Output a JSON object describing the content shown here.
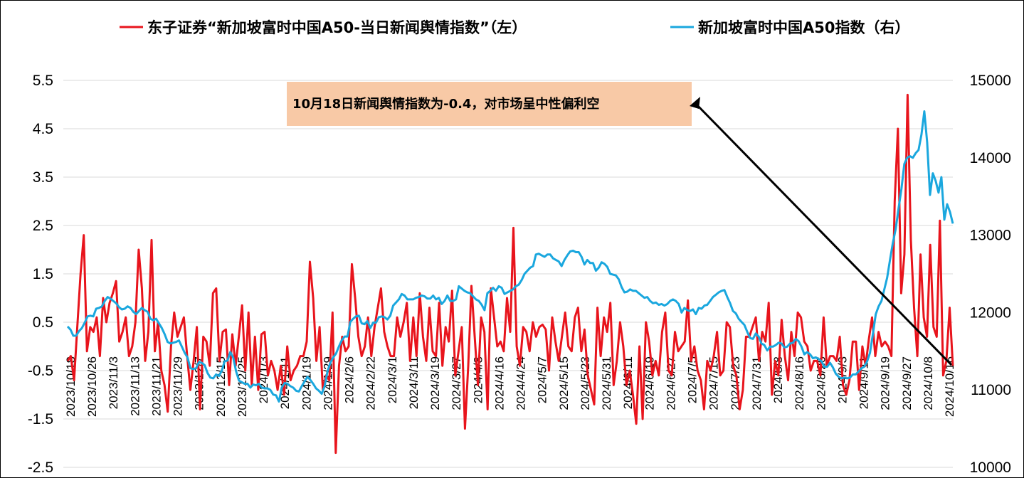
{
  "colors": {
    "sentiment": "#e8141c",
    "a50": "#1aa7de",
    "annotation_box": "#f8c9a6",
    "grid": "#d9d9d9"
  },
  "legend": {
    "sentiment_label": "东子证券“新加坡富时中国A50-当日新闻舆情指数”（左）",
    "a50_label": "新加坡富时中国A50指数（右）"
  },
  "annotation": {
    "text": "10月18日新闻舆情指数为-0.4，对市场呈中性偏利空"
  },
  "chart_data": {
    "type": "line",
    "legend_position": "top",
    "grid": "horizontal",
    "y_left": {
      "range": [
        -2.5,
        5.5
      ],
      "ticks": [
        "-2.5",
        "-1.5",
        "-0.5",
        "0.5",
        "1.5",
        "2.5",
        "3.5",
        "4.5",
        "5.5"
      ]
    },
    "y_right": {
      "range": [
        10000,
        15000
      ],
      "ticks": [
        "10000",
        "11000",
        "12000",
        "13000",
        "14000",
        "15000"
      ]
    },
    "x_tick_labels": [
      "2023/10/18",
      "2023/10/26",
      "2023/11/3",
      "2023/11/13",
      "2023/11/21",
      "2023/11/29",
      "2023/12/7",
      "2023/12/15",
      "2023/12/25",
      "2024/1/3",
      "2024/1/11",
      "2024/1/19",
      "2024/1/29",
      "2024/2/6",
      "2024/2/22",
      "2024/3/1",
      "2024/3/11",
      "2024/3/19",
      "2024/3/27",
      "2024/4/8",
      "2024/4/16",
      "2024/4/24",
      "2024/5/7",
      "2024/5/15",
      "2024/5/23",
      "2024/5/31",
      "2024/6/11",
      "2024/6/19",
      "2024/6/27",
      "2024/7/5",
      "2024/7/15",
      "2024/7/23",
      "2024/7/31",
      "2024/8/8",
      "2024/8/16",
      "2024/8/26",
      "2024/9/3",
      "2024/9/11",
      "2024/9/19",
      "2024/9/27",
      "2024/10/8",
      "2024/10/16"
    ],
    "series": [
      {
        "name": "东子证券“新加坡富时中国A50-当日新闻舆情指数”（左）",
        "axis": "left",
        "values": [
          -0.3,
          -0.2,
          -0.7,
          0.4,
          1.5,
          2.3,
          -0.1,
          0.4,
          0.3,
          0.6,
          -0.2,
          1.0,
          0.5,
          0.9,
          1.1,
          1.35,
          0.1,
          0.3,
          0.6,
          -0.2,
          0.0,
          0.5,
          2.0,
          1.2,
          -0.3,
          0.3,
          2.2,
          -0.1,
          0.5,
          -0.5,
          -0.8,
          -1.35,
          0.0,
          0.7,
          0.2,
          0.4,
          0.6,
          -0.2,
          -0.9,
          -0.3,
          0.4,
          -1.3,
          0.2,
          0.1,
          -0.4,
          1.1,
          1.2,
          -0.3,
          0.3,
          0.35,
          -0.8,
          0.25,
          -0.4,
          0.2,
          0.85,
          -0.5,
          0.7,
          -0.8,
          0.2,
          -0.9,
          0.25,
          0.3,
          -0.6,
          -0.3,
          -0.5,
          -0.9,
          -0.4,
          -1.0,
          0.0,
          -0.7,
          -0.5,
          -0.4,
          -0.2,
          -0.2,
          0.1,
          1.75,
          1.0,
          -0.3,
          0.4,
          -0.9,
          -0.6,
          -0.7,
          0.7,
          -2.2,
          -0.4,
          0.2,
          -0.1,
          0.0,
          1.7,
          1.0,
          0.2,
          -0.2,
          0.0,
          0.6,
          -0.2,
          0.4,
          0.8,
          1.2,
          0.3,
          0.0,
          -0.2,
          -0.2,
          0.6,
          0.2,
          0.5,
          0.9,
          -0.3,
          0.6,
          -0.2,
          1.1,
          0.2,
          -0.3,
          0.8,
          -0.1,
          -0.2,
          0.9,
          -0.4,
          0.4,
          0.1,
          1.15,
          -0.6,
          -0.1,
          0.4,
          -1.7,
          -0.4,
          1.25,
          0.2,
          -0.8,
          0.6,
          0.3,
          -1.3,
          1.2,
          0.6,
          0.0,
          0.1,
          -0.1,
          1.0,
          0.3,
          2.45,
          0.0,
          -0.4,
          0.4,
          0.3,
          -0.1,
          0.5,
          0.2,
          0.4,
          0.45,
          0.35,
          -0.5,
          0.6,
          0.1,
          -0.3,
          0.2,
          0.7,
          0.0,
          -0.1,
          0.6,
          0.8,
          -0.1,
          0.35,
          -0.6,
          -0.9,
          -1.2,
          0.8,
          -0.2,
          0.6,
          0.3,
          0.9,
          -0.8,
          -0.3,
          0.5,
          0.0,
          -0.8,
          -0.5,
          -1.0,
          -1.6,
          0.0,
          -1.5,
          0.5,
          0.1,
          -0.6,
          -0.3,
          -0.6,
          0.3,
          0.7,
          -0.5,
          -0.6,
          0.3,
          -0.1,
          0.0,
          0.1,
          0.95,
          -0.3,
          0.0,
          -0.5,
          -0.7,
          -1.3,
          -0.3,
          -0.5,
          -0.2,
          0.3,
          -0.6,
          -0.5,
          0.5,
          0.4,
          -0.4,
          -0.6,
          -1.3,
          -0.9,
          0.2,
          0.2,
          0.4,
          0.6,
          -0.3,
          0.3,
          0.1,
          0.9,
          -1.0,
          -0.3,
          -0.6,
          0.55,
          -0.2,
          -0.7,
          0.3,
          -0.2,
          0.7,
          0.6,
          0.1,
          0.0,
          -0.5,
          -0.3,
          -0.3,
          -0.6,
          0.6,
          -0.4,
          -0.2,
          -0.2,
          -0.3,
          0.2,
          -0.8,
          -1.0,
          -0.7,
          0.1,
          0.1,
          -0.9,
          0.0,
          -0.4,
          0.15,
          0.6,
          -0.2,
          0.3,
          0.0,
          0.1,
          0.0,
          -0.2,
          3.0,
          4.5,
          1.1,
          1.9,
          5.2,
          2.2,
          0.8,
          -0.2,
          1.9,
          0.6,
          0.2,
          2.1,
          0.4,
          0.2,
          2.6,
          -0.6,
          -0.3,
          0.8,
          -0.4
        ]
      },
      {
        "name": "新加坡富时中国A50指数（右）",
        "axis": "right",
        "values": [
          11820,
          11780,
          11700,
          11700,
          11760,
          11800,
          11870,
          11950,
          11960,
          11950,
          12050,
          12060,
          12080,
          12150,
          12200,
          12180,
          12150,
          12120,
          12070,
          12040,
          12050,
          12080,
          12060,
          12010,
          11980,
          12020,
          12060,
          12030,
          12010,
          11920,
          11900,
          11920,
          11860,
          11800,
          11720,
          11620,
          11600,
          11610,
          11620,
          11640,
          11560,
          11480,
          11420,
          11280,
          11270,
          11280,
          11360,
          11350,
          11320,
          11220,
          11160,
          11150,
          11200,
          11180,
          11250,
          11370,
          11380,
          11490,
          11420,
          11240,
          11120,
          11100,
          11080,
          11080,
          11030,
          11070,
          11060,
          11080,
          11030,
          11020,
          11020,
          11000,
          10940,
          10930,
          10850,
          11030,
          11090,
          11080,
          11050,
          11030,
          10990,
          10980,
          11050,
          11110,
          11170,
          11130,
          11080,
          11020,
          10990,
          10950,
          11050,
          11240,
          11350,
          11420,
          11470,
          11560,
          11640,
          11690,
          11690,
          11880,
          11920,
          11950,
          11960,
          11860,
          11850,
          11890,
          11800,
          11870,
          11870,
          11940,
          11950,
          11940,
          11910,
          11960,
          12090,
          12130,
          12170,
          12240,
          12220,
          12170,
          12170,
          12170,
          12190,
          12200,
          12220,
          12210,
          12180,
          12180,
          12220,
          12170,
          12190,
          12110,
          12150,
          12220,
          12150,
          12150,
          12170,
          12340,
          12310,
          12280,
          12260,
          12250,
          12210,
          12170,
          12150,
          12100,
          12030,
          12250,
          12280,
          12320,
          12280,
          12340,
          12320,
          12240,
          12260,
          12280,
          12300,
          12340,
          12360,
          12420,
          12500,
          12540,
          12580,
          12600,
          12750,
          12760,
          12740,
          12720,
          12750,
          12750,
          12700,
          12680,
          12660,
          12600,
          12680,
          12740,
          12790,
          12800,
          12780,
          12780,
          12720,
          12620,
          12680,
          12640,
          12640,
          12540,
          12580,
          12650,
          12630,
          12590,
          12500,
          12490,
          12480,
          12430,
          12330,
          12260,
          12270,
          12300,
          12280,
          12280,
          12250,
          12220,
          12190,
          12200,
          12150,
          12120,
          12130,
          12100,
          12110,
          12090,
          12110,
          12150,
          12170,
          12150,
          12110,
          12000,
          12060,
          12030,
          12020,
          12040,
          11980,
          12060,
          12050,
          12090,
          12100,
          12150,
          12200,
          12230,
          12260,
          12280,
          12290,
          12200,
          12120,
          12020,
          11990,
          11920,
          11880,
          11840,
          11750,
          11670,
          11660,
          11730,
          11690,
          11600,
          11580,
          11510,
          11560,
          11560,
          11580,
          11610,
          11600,
          11550,
          11560,
          11600,
          11610,
          11660,
          11630,
          11560,
          11460,
          11490,
          11460,
          11410,
          11420,
          11400,
          11370,
          11300,
          11300,
          11350,
          11290,
          11210,
          11170,
          11150,
          11160,
          11150,
          11160,
          11200,
          11200,
          11240,
          11280,
          11300,
          11370,
          11480,
          11720,
          11980,
          12080,
          12150,
          12300,
          12450,
          12680,
          12900,
          13080,
          13350,
          13600,
          13920,
          14000,
          14020,
          14000,
          14060,
          14100,
          14300,
          14600,
          14200,
          13520,
          13800,
          13700,
          13550,
          13750,
          13200,
          13400,
          13300,
          13150
        ]
      }
    ]
  }
}
